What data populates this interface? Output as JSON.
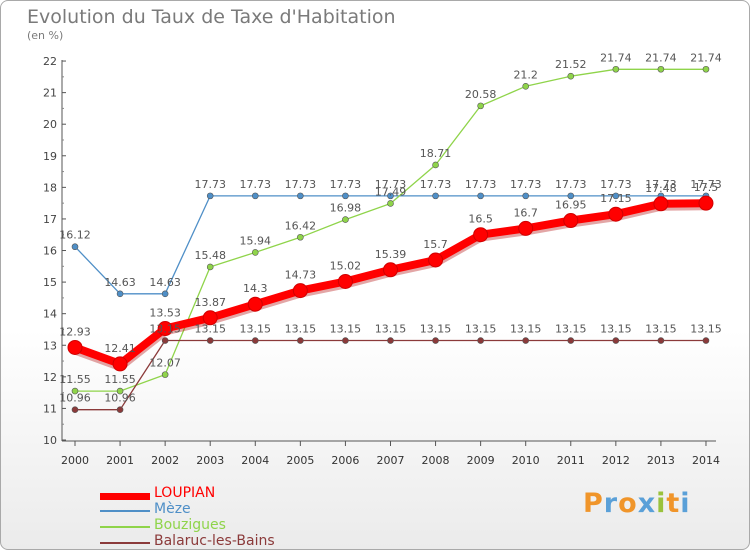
{
  "header": {
    "title": "Evolution du Taux de Taxe d'Habitation",
    "subtitle": "(en %)"
  },
  "brand": {
    "logo_text": "Proxiti",
    "logo_colors": [
      "#f0952a",
      "#5aa0d8",
      "#f0952a",
      "#5aa0d8",
      "#9ac23c",
      "#f0952a",
      "#5aa0d8"
    ]
  },
  "colors": {
    "LOUPIAN": "#ff0000",
    "Mèze": "#4f8fc7",
    "Bouzigues": "#8fd44a",
    "Balaruc-les-Bains": "#8b3a3a"
  },
  "chart_data": {
    "type": "line",
    "title": "Evolution du Taux de Taxe d'Habitation",
    "subtitle": "(en %)",
    "xlabel": "",
    "ylabel": "",
    "x": [
      "2000",
      "2001",
      "2002",
      "2003",
      "2004",
      "2005",
      "2006",
      "2007",
      "2008",
      "2009",
      "2010",
      "2011",
      "2012",
      "2013",
      "2014"
    ],
    "ylim": [
      10,
      22
    ],
    "yticks": [
      10,
      11,
      12,
      13,
      14,
      15,
      16,
      17,
      18,
      19,
      20,
      21,
      22
    ],
    "grid": false,
    "legend": "bottom-left",
    "series": [
      {
        "name": "LOUPIAN",
        "values": [
          12.93,
          12.41,
          13.53,
          13.87,
          14.3,
          14.73,
          15.02,
          15.39,
          15.7,
          16.5,
          16.7,
          16.95,
          17.15,
          17.48,
          17.5
        ]
      },
      {
        "name": "Mèze",
        "values": [
          16.12,
          14.63,
          14.63,
          17.73,
          17.73,
          17.73,
          17.73,
          17.73,
          17.73,
          17.73,
          17.73,
          17.73,
          17.73,
          17.73,
          17.73
        ]
      },
      {
        "name": "Bouzigues",
        "values": [
          11.55,
          11.55,
          12.07,
          15.48,
          15.94,
          16.42,
          16.98,
          17.49,
          18.71,
          20.58,
          21.2,
          21.52,
          21.74,
          21.74,
          21.74
        ]
      },
      {
        "name": "Balaruc-les-Bains",
        "values": [
          10.96,
          10.96,
          13.15,
          13.15,
          13.15,
          13.15,
          13.15,
          13.15,
          13.15,
          13.15,
          13.15,
          13.15,
          13.15,
          13.15,
          13.15
        ]
      }
    ]
  }
}
